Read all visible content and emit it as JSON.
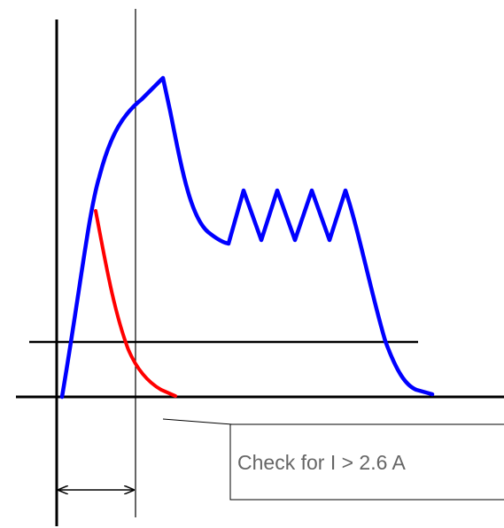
{
  "callout": {
    "text": "Check for I > 2.6 A"
  },
  "colors": {
    "axes": "#000000",
    "current_trace": "#0000ff",
    "decay_trace": "#ff0000",
    "callout_text": "#666666",
    "callout_border": "#000000",
    "background": "#ffffff"
  },
  "icons": {
    "interval_marker": "double-headed-arrow-icon"
  }
}
